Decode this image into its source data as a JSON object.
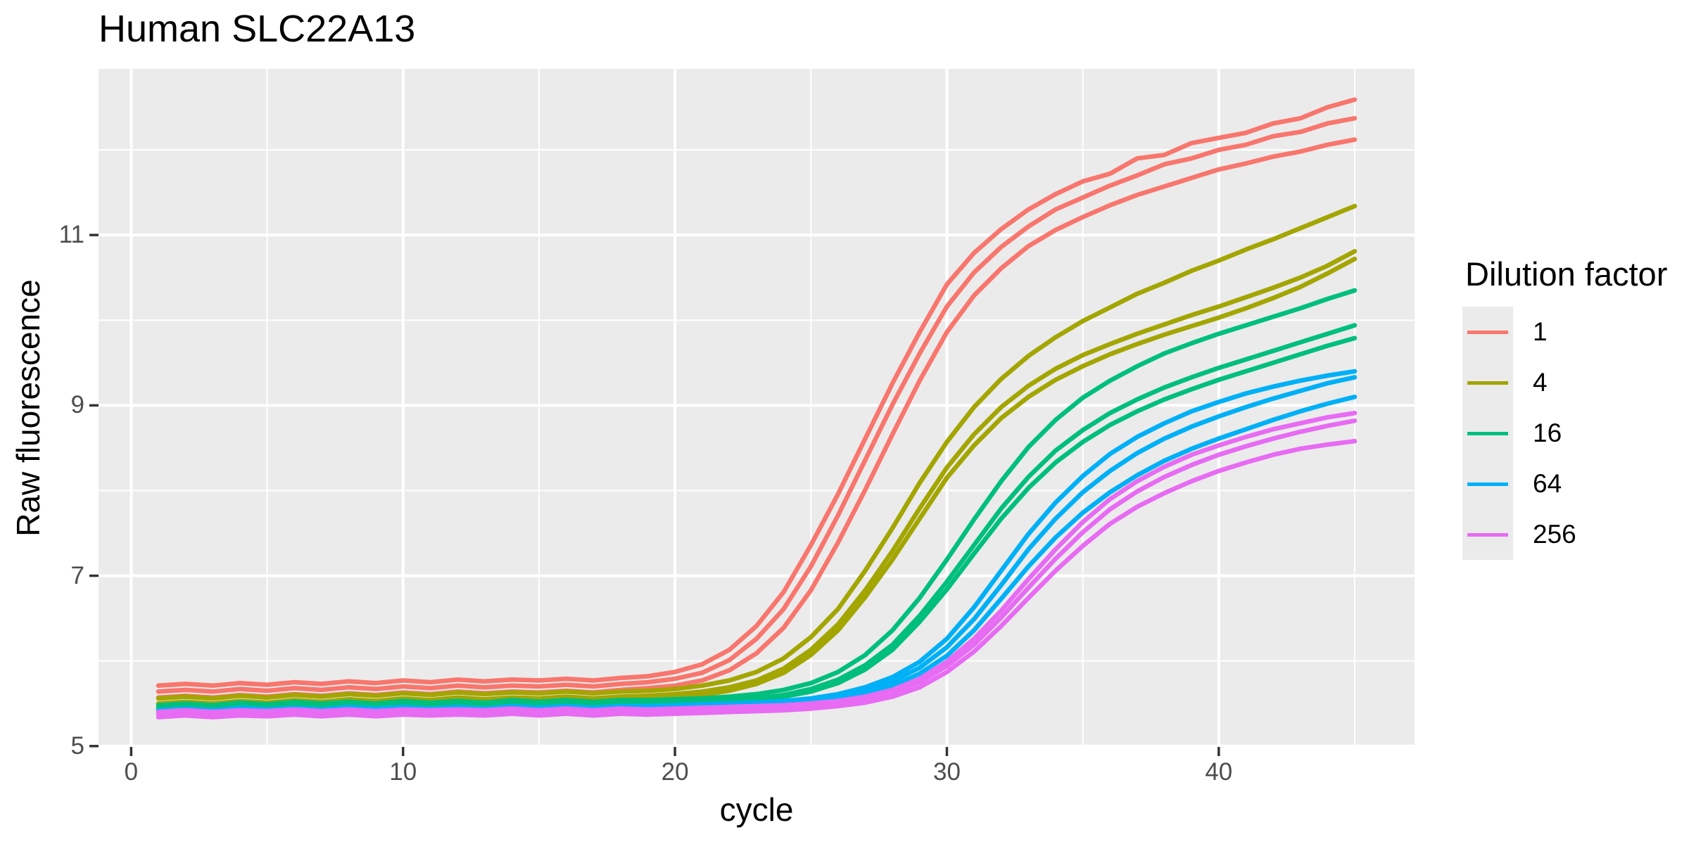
{
  "title": "Human SLC22A13",
  "axes": {
    "x_label": "cycle",
    "y_label": "Raw fluorescence"
  },
  "legend": {
    "title": "Dilution factor"
  },
  "palette": {
    "panel_bg": "#EBEBEB",
    "grid": "#FFFFFF",
    "tick_text": "#4D4D4D",
    "tick_mark": "#333333"
  },
  "chart_data": {
    "type": "line",
    "title": "Human SLC22A13",
    "xlabel": "cycle",
    "ylabel": "Raw fluorescence",
    "legend_title": "Dilution factor",
    "legend_position": "right",
    "grid": "on",
    "xlim": [
      -1.2,
      47.2
    ],
    "ylim": [
      4.99,
      12.95
    ],
    "x_ticks": [
      0,
      10,
      20,
      30,
      40
    ],
    "x_minor_ticks": [
      5,
      15,
      25,
      35,
      45
    ],
    "y_ticks": [
      5,
      7,
      9,
      11
    ],
    "y_minor_ticks": [
      6,
      8,
      10,
      12
    ],
    "x": [
      1,
      2,
      3,
      4,
      5,
      6,
      7,
      8,
      9,
      10,
      11,
      12,
      13,
      14,
      15,
      16,
      17,
      18,
      19,
      20,
      21,
      22,
      23,
      24,
      25,
      26,
      27,
      28,
      29,
      30,
      31,
      32,
      33,
      34,
      35,
      36,
      37,
      38,
      39,
      40,
      41,
      42,
      43,
      44,
      45
    ],
    "groups": [
      {
        "dilution": "1",
        "color": "#F8766D",
        "replicates": [
          [
            5.71,
            5.73,
            5.71,
            5.74,
            5.72,
            5.75,
            5.73,
            5.76,
            5.74,
            5.77,
            5.75,
            5.78,
            5.76,
            5.78,
            5.77,
            5.79,
            5.77,
            5.8,
            5.82,
            5.87,
            5.96,
            6.13,
            6.41,
            6.81,
            7.36,
            7.96,
            8.61,
            9.26,
            9.86,
            10.42,
            10.79,
            11.07,
            11.3,
            11.48,
            11.63,
            11.72,
            11.9,
            11.94,
            12.08,
            12.14,
            12.2,
            12.31,
            12.37,
            12.5,
            12.59
          ],
          [
            5.64,
            5.66,
            5.64,
            5.67,
            5.65,
            5.68,
            5.66,
            5.69,
            5.67,
            5.7,
            5.68,
            5.71,
            5.69,
            5.71,
            5.7,
            5.72,
            5.7,
            5.73,
            5.75,
            5.79,
            5.86,
            6.01,
            6.26,
            6.61,
            7.11,
            7.71,
            8.36,
            9.01,
            9.61,
            10.16,
            10.56,
            10.86,
            11.1,
            11.3,
            11.44,
            11.58,
            11.7,
            11.83,
            11.9,
            12.0,
            12.06,
            12.16,
            12.21,
            12.31,
            12.37
          ],
          [
            5.57,
            5.59,
            5.57,
            5.6,
            5.58,
            5.61,
            5.59,
            5.62,
            5.6,
            5.63,
            5.61,
            5.64,
            5.62,
            5.64,
            5.63,
            5.65,
            5.63,
            5.66,
            5.68,
            5.71,
            5.77,
            5.89,
            6.09,
            6.39,
            6.83,
            7.39,
            8.01,
            8.66,
            9.29,
            9.86,
            10.29,
            10.61,
            10.87,
            11.06,
            11.21,
            11.35,
            11.47,
            11.57,
            11.67,
            11.77,
            11.84,
            11.92,
            11.98,
            12.06,
            12.12
          ]
        ]
      },
      {
        "dilution": "4",
        "color": "#A3A500",
        "replicates": [
          [
            5.56,
            5.58,
            5.56,
            5.59,
            5.57,
            5.6,
            5.58,
            5.61,
            5.59,
            5.62,
            5.6,
            5.63,
            5.61,
            5.63,
            5.62,
            5.64,
            5.62,
            5.64,
            5.65,
            5.67,
            5.71,
            5.77,
            5.87,
            6.03,
            6.28,
            6.61,
            7.06,
            7.56,
            8.09,
            8.57,
            8.98,
            9.31,
            9.58,
            9.8,
            9.99,
            10.15,
            10.31,
            10.44,
            10.58,
            10.7,
            10.83,
            10.95,
            11.08,
            11.21,
            11.34
          ],
          [
            5.5,
            5.52,
            5.5,
            5.53,
            5.51,
            5.54,
            5.52,
            5.55,
            5.53,
            5.56,
            5.54,
            5.57,
            5.55,
            5.57,
            5.56,
            5.58,
            5.56,
            5.58,
            5.59,
            5.61,
            5.64,
            5.69,
            5.77,
            5.91,
            6.13,
            6.43,
            6.83,
            7.29,
            7.79,
            8.27,
            8.66,
            8.98,
            9.23,
            9.43,
            9.59,
            9.72,
            9.84,
            9.95,
            10.06,
            10.16,
            10.27,
            10.38,
            10.5,
            10.64,
            10.81
          ],
          [
            5.46,
            5.48,
            5.46,
            5.49,
            5.47,
            5.5,
            5.48,
            5.51,
            5.49,
            5.52,
            5.5,
            5.53,
            5.51,
            5.53,
            5.52,
            5.54,
            5.52,
            5.54,
            5.55,
            5.57,
            5.6,
            5.65,
            5.73,
            5.86,
            6.07,
            6.36,
            6.75,
            7.19,
            7.67,
            8.15,
            8.53,
            8.85,
            9.1,
            9.3,
            9.46,
            9.6,
            9.72,
            9.83,
            9.93,
            10.03,
            10.14,
            10.26,
            10.39,
            10.55,
            10.72
          ]
        ]
      },
      {
        "dilution": "16",
        "color": "#00BF7D",
        "replicates": [
          [
            5.48,
            5.5,
            5.48,
            5.51,
            5.49,
            5.52,
            5.5,
            5.52,
            5.5,
            5.53,
            5.51,
            5.53,
            5.51,
            5.54,
            5.52,
            5.54,
            5.52,
            5.54,
            5.54,
            5.55,
            5.56,
            5.58,
            5.61,
            5.66,
            5.74,
            5.87,
            6.07,
            6.36,
            6.74,
            7.19,
            7.66,
            8.11,
            8.51,
            8.83,
            9.09,
            9.29,
            9.46,
            9.61,
            9.73,
            9.84,
            9.94,
            10.04,
            10.14,
            10.25,
            10.35
          ],
          [
            5.44,
            5.46,
            5.44,
            5.47,
            5.45,
            5.48,
            5.46,
            5.48,
            5.46,
            5.49,
            5.47,
            5.49,
            5.47,
            5.5,
            5.48,
            5.5,
            5.48,
            5.5,
            5.5,
            5.51,
            5.52,
            5.54,
            5.56,
            5.6,
            5.67,
            5.78,
            5.95,
            6.19,
            6.53,
            6.93,
            7.36,
            7.79,
            8.16,
            8.47,
            8.71,
            8.91,
            9.07,
            9.21,
            9.33,
            9.44,
            9.54,
            9.64,
            9.74,
            9.84,
            9.94
          ],
          [
            5.42,
            5.44,
            5.42,
            5.45,
            5.43,
            5.46,
            5.44,
            5.46,
            5.44,
            5.47,
            5.45,
            5.47,
            5.45,
            5.48,
            5.46,
            5.48,
            5.46,
            5.48,
            5.48,
            5.49,
            5.5,
            5.52,
            5.54,
            5.58,
            5.64,
            5.74,
            5.9,
            6.13,
            6.46,
            6.84,
            7.26,
            7.67,
            8.03,
            8.33,
            8.57,
            8.77,
            8.93,
            9.07,
            9.19,
            9.3,
            9.4,
            9.5,
            9.6,
            9.7,
            9.79
          ]
        ]
      },
      {
        "dilution": "64",
        "color": "#00B0F6",
        "replicates": [
          [
            5.42,
            5.44,
            5.42,
            5.45,
            5.43,
            5.45,
            5.43,
            5.46,
            5.44,
            5.46,
            5.44,
            5.46,
            5.44,
            5.47,
            5.45,
            5.47,
            5.45,
            5.47,
            5.47,
            5.48,
            5.49,
            5.5,
            5.51,
            5.53,
            5.56,
            5.61,
            5.69,
            5.81,
            5.99,
            6.26,
            6.63,
            7.06,
            7.49,
            7.86,
            8.17,
            8.43,
            8.63,
            8.79,
            8.93,
            9.04,
            9.14,
            9.22,
            9.29,
            9.35,
            9.4
          ],
          [
            5.4,
            5.42,
            5.4,
            5.43,
            5.41,
            5.43,
            5.41,
            5.44,
            5.42,
            5.44,
            5.42,
            5.44,
            5.42,
            5.45,
            5.43,
            5.45,
            5.43,
            5.45,
            5.45,
            5.46,
            5.47,
            5.48,
            5.49,
            5.51,
            5.54,
            5.58,
            5.65,
            5.76,
            5.92,
            6.16,
            6.49,
            6.89,
            7.31,
            7.67,
            7.98,
            8.23,
            8.44,
            8.61,
            8.75,
            8.87,
            8.98,
            9.08,
            9.17,
            9.26,
            9.33
          ],
          [
            5.38,
            5.4,
            5.38,
            5.41,
            5.39,
            5.41,
            5.39,
            5.42,
            5.4,
            5.42,
            5.4,
            5.42,
            5.4,
            5.43,
            5.41,
            5.43,
            5.41,
            5.43,
            5.43,
            5.44,
            5.45,
            5.46,
            5.47,
            5.49,
            5.51,
            5.55,
            5.61,
            5.71,
            5.85,
            6.06,
            6.36,
            6.73,
            7.11,
            7.45,
            7.74,
            7.98,
            8.18,
            8.35,
            8.49,
            8.61,
            8.72,
            8.83,
            8.93,
            9.02,
            9.1
          ]
        ]
      },
      {
        "dilution": "256",
        "color": "#E76BF3",
        "replicates": [
          [
            5.4,
            5.42,
            5.4,
            5.42,
            5.41,
            5.43,
            5.41,
            5.43,
            5.41,
            5.43,
            5.42,
            5.43,
            5.42,
            5.44,
            5.42,
            5.44,
            5.42,
            5.44,
            5.43,
            5.44,
            5.45,
            5.46,
            5.47,
            5.48,
            5.5,
            5.53,
            5.58,
            5.66,
            5.79,
            5.99,
            6.26,
            6.59,
            6.96,
            7.31,
            7.63,
            7.9,
            8.11,
            8.28,
            8.42,
            8.53,
            8.63,
            8.72,
            8.79,
            8.86,
            8.91
          ],
          [
            5.38,
            5.4,
            5.38,
            5.4,
            5.39,
            5.41,
            5.39,
            5.41,
            5.39,
            5.41,
            5.4,
            5.41,
            5.4,
            5.42,
            5.4,
            5.42,
            5.4,
            5.42,
            5.41,
            5.42,
            5.43,
            5.44,
            5.45,
            5.46,
            5.48,
            5.51,
            5.56,
            5.63,
            5.75,
            5.94,
            6.19,
            6.51,
            6.86,
            7.2,
            7.51,
            7.78,
            7.99,
            8.16,
            8.3,
            8.42,
            8.52,
            8.61,
            8.69,
            8.76,
            8.82
          ],
          [
            5.34,
            5.36,
            5.34,
            5.36,
            5.35,
            5.37,
            5.35,
            5.37,
            5.35,
            5.37,
            5.36,
            5.37,
            5.36,
            5.38,
            5.36,
            5.38,
            5.36,
            5.38,
            5.37,
            5.38,
            5.39,
            5.4,
            5.41,
            5.42,
            5.44,
            5.47,
            5.51,
            5.58,
            5.69,
            5.87,
            6.11,
            6.41,
            6.74,
            7.06,
            7.35,
            7.61,
            7.81,
            7.97,
            8.11,
            8.23,
            8.33,
            8.42,
            8.49,
            8.54,
            8.58
          ]
        ]
      }
    ]
  }
}
